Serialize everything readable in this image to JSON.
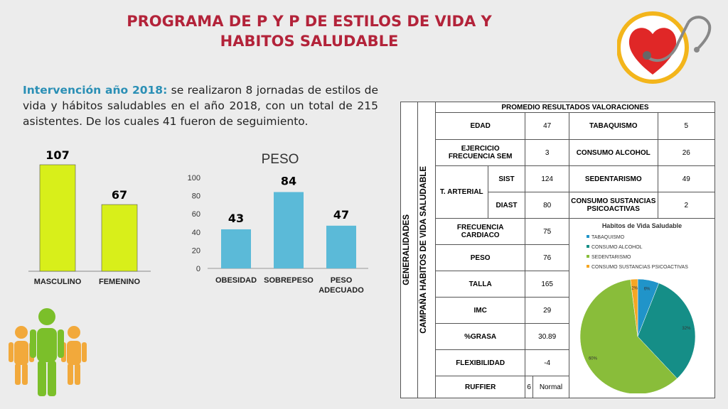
{
  "title": [
    "PROGRAMA DE P Y P DE ESTILOS DE VIDA Y",
    "HABITOS SALUDABLE"
  ],
  "intro": {
    "lead": "Intervención año 2018:",
    "text": " se realizaron 8 jornadas de estilos de vida y hábitos saludables en el año 2018, con un total de 215 asistentes. De los cuales 41 fueron de seguimiento."
  },
  "colors": {
    "lime": "#d8ef1a",
    "blue": "#5bbad8",
    "title": "#b3233a",
    "pie_teal": "#158e87",
    "pie_green": "#89bd3a",
    "pie_blue": "#2094c9",
    "pie_orange": "#f5a623"
  },
  "icons": [
    "heart-stethoscope-icon",
    "people-group-icon"
  ],
  "chart_data": [
    {
      "type": "bar",
      "categories": [
        "MASCULINO",
        "FEMENINO"
      ],
      "values": [
        107,
        67
      ],
      "ylim": [
        0,
        107
      ]
    },
    {
      "type": "bar",
      "title": "PESO",
      "categories": [
        "OBESIDAD",
        "SOBREPESO",
        "PESO ADECUADO"
      ],
      "values": [
        43,
        84,
        47
      ],
      "yticks": [
        "0",
        "20",
        "40",
        "60",
        "80",
        "100"
      ],
      "ylim": [
        0,
        100
      ]
    },
    {
      "type": "pie",
      "title": "Habitos de Vida Saludable",
      "legend_position": "top-left",
      "labels": [
        "TABAQUISMO",
        "CONSUMO ALCOHOL",
        "SEDENTARISMO",
        "CONSUMO SUSTANCIAS PSICOACTIVAS"
      ],
      "values": [
        6,
        32,
        60,
        2
      ],
      "value_labels": [
        "6%",
        "32%",
        "60%",
        "2%"
      ]
    }
  ],
  "table": {
    "side_label_1": "GENERALIDADES",
    "side_label_2": "CAMPAÑA  HABITOS DE VIDA SALUDABLE",
    "header": "PROMEDIO RESULTADOS VALORACIONES",
    "edad_label": "EDAD",
    "edad_value": "47",
    "ejercicio_label": "EJERCICIO FRECUENCIA SEM",
    "ejercicio_value": "3",
    "tarterial_label": "T. ARTERIAL",
    "sist_label": "SIST",
    "sist_value": "124",
    "diast_label": "DIAST",
    "diast_value": "80",
    "frec_label": "FRECUENCIA CARDIACO",
    "frec_value": "75",
    "peso_label": "PESO",
    "peso_value": "76",
    "talla_label": "TALLA",
    "talla_value": "165",
    "imc_label": "IMC",
    "imc_value": "29",
    "grasa_label": "%GRASA",
    "grasa_value": "30.89",
    "flex_label": "FLEXIBILIDAD",
    "flex_value": "-4",
    "ruffier_label": "RUFFIER",
    "ruffier_num": "6",
    "ruffier_value": "Normal",
    "tab_label": "TABAQUISMO",
    "tab_value": "5",
    "alc_label": "CONSUMO ALCOHOL",
    "alc_value": "26",
    "sed_label": "SEDENTARISMO",
    "sed_value": "49",
    "psi_label": "CONSUMO SUSTANCIAS PSICOACTIVAS",
    "psi_value": "2"
  }
}
